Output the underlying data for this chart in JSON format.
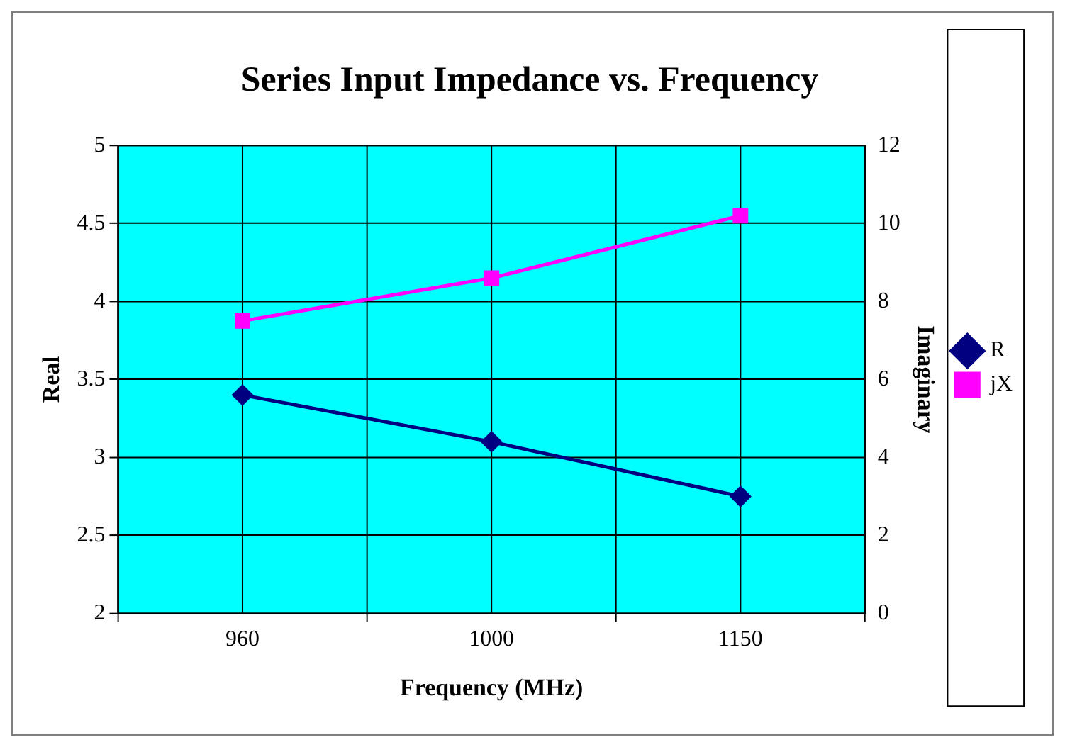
{
  "chart_data": {
    "type": "line",
    "title": "Series Input Impedance vs. Frequency",
    "xlabel": "Frequency (MHz)",
    "ylabel": "Real",
    "y2label": "Imaginary",
    "categories": [
      "960",
      "1000",
      "1150"
    ],
    "series": [
      {
        "name": "R",
        "color": "#000080",
        "values": [
          3.4,
          3.1,
          2.75
        ],
        "marker": "diamond"
      },
      {
        "name": "jX",
        "color": "#ff00ff",
        "values": [
          7.5,
          8.6,
          10.2
        ],
        "axis": "y2",
        "marker": "square"
      }
    ],
    "ylim": [
      2,
      5
    ],
    "yticks": [
      2,
      2.5,
      3,
      3.5,
      4,
      4.5,
      5
    ],
    "y2lim": [
      0,
      12
    ],
    "y2ticks": [
      0,
      2,
      4,
      6,
      8,
      10,
      12
    ],
    "grid": true,
    "legend": "right",
    "line_style": "solid"
  }
}
